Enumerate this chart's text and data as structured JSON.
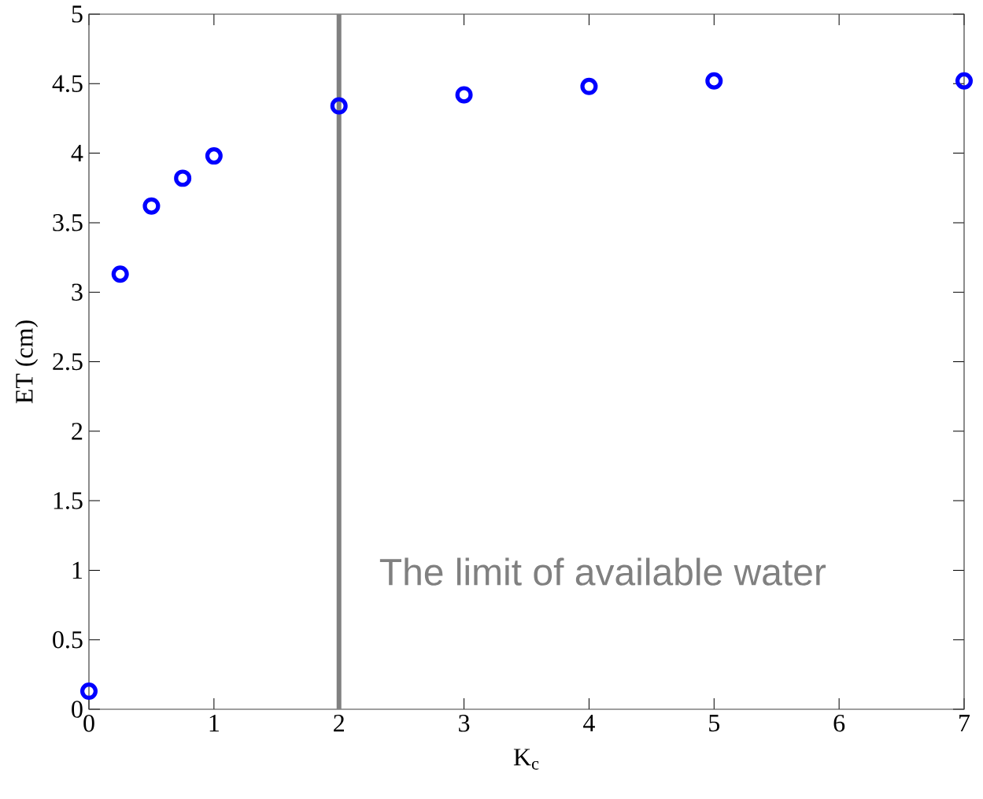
{
  "chart_data": {
    "type": "scatter",
    "xlabel": "K$_{c}$",
    "ylabel": "ET (cm)",
    "xlim": [
      0,
      7
    ],
    "ylim": [
      0,
      5
    ],
    "xticks": [
      0,
      1,
      2,
      3,
      4,
      5,
      6,
      7
    ],
    "yticks": [
      0,
      0.5,
      1,
      1.5,
      2,
      2.5,
      3,
      3.5,
      4,
      4.5,
      5
    ],
    "marker": "circle",
    "series": [
      {
        "color": "#0000ff",
        "x": [
          0,
          0.25,
          0.5,
          0.75,
          1,
          2,
          3,
          4,
          5,
          7
        ],
        "values": [
          0.13,
          3.13,
          3.62,
          3.82,
          3.98,
          4.34,
          4.42,
          4.48,
          4.52,
          4.52
        ]
      }
    ],
    "ref_lines": [
      {
        "axis": "x",
        "value": 2,
        "label": "The limit of available water",
        "color": "#808080"
      }
    ]
  }
}
